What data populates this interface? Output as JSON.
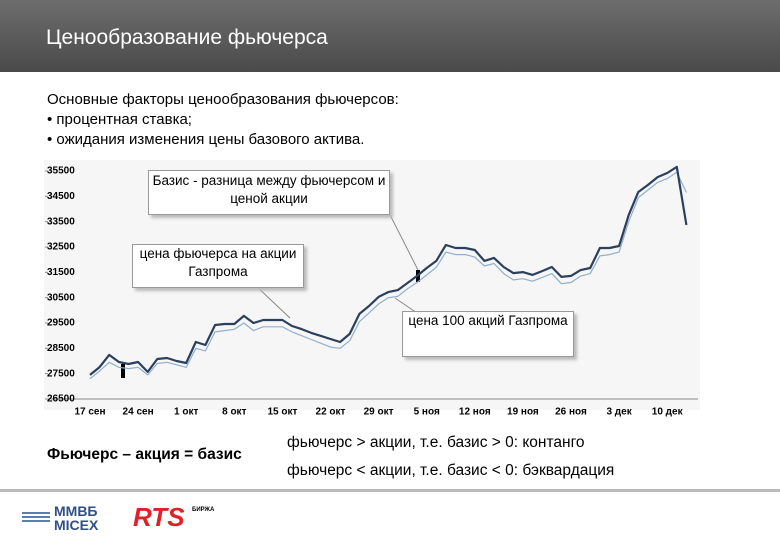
{
  "header": {
    "title": "Ценообразование фьючерса"
  },
  "intro": {
    "heading": "Основные факторы ценообразования фьючерсов:",
    "bullets": [
      "• процентная ставка;",
      "• ожидания изменения цены базового актива."
    ]
  },
  "chart_data": {
    "type": "line",
    "categories": [
      "17 сен",
      null,
      null,
      null,
      null,
      "24 сен",
      null,
      null,
      null,
      null,
      "1 окт",
      null,
      null,
      null,
      null,
      "8 окт",
      null,
      null,
      null,
      null,
      "15 окт",
      null,
      null,
      null,
      null,
      "22 окт",
      null,
      null,
      null,
      null,
      "29 окт",
      null,
      null,
      null,
      null,
      "5 ноя",
      null,
      null,
      null,
      null,
      "12 ноя",
      null,
      null,
      null,
      null,
      "19 ноя",
      null,
      null,
      null,
      null,
      "26 ноя",
      null,
      null,
      null,
      null,
      "3 дек",
      null,
      null,
      null,
      null,
      "10 дек",
      null,
      null
    ],
    "series": [
      {
        "color": "#2b3f5e",
        "values": [
          27450,
          27760,
          28240,
          27960,
          27880,
          27960,
          27570,
          28080,
          28120,
          28000,
          27920,
          28750,
          28630,
          29420,
          29460,
          29460,
          29780,
          29500,
          29620,
          29620,
          29620,
          29380,
          29260,
          29110,
          28990,
          28870,
          28750,
          29070,
          29860,
          30170,
          30530,
          30720,
          30800,
          31080,
          31360,
          31670,
          31950,
          32580,
          32460,
          32460,
          32380,
          31950,
          32070,
          31710,
          31470,
          31510,
          31400,
          31550,
          31710,
          31320,
          31360,
          31590,
          31670,
          32460,
          32460,
          32540,
          33760,
          34670,
          34950,
          35260,
          35420,
          35660,
          33370
        ]
      },
      {
        "color": "#8fb0cc",
        "values": [
          27300,
          27600,
          27950,
          27750,
          27700,
          27750,
          27450,
          27900,
          27950,
          27850,
          27750,
          28500,
          28400,
          29150,
          29200,
          29250,
          29500,
          29200,
          29350,
          29350,
          29350,
          29150,
          29000,
          28850,
          28700,
          28550,
          28500,
          28800,
          29550,
          29900,
          30250,
          30500,
          30550,
          30850,
          31100,
          31400,
          31700,
          32300,
          32200,
          32200,
          32100,
          31750,
          31850,
          31450,
          31200,
          31250,
          31150,
          31300,
          31450,
          31050,
          31100,
          31350,
          31450,
          32150,
          32200,
          32300,
          33500,
          34450,
          34750,
          35050,
          35200,
          35450,
          34650
        ]
      }
    ],
    "ylim": [
      26500,
      35500
    ],
    "yticks": [
      26500,
      27500,
      28500,
      29500,
      30500,
      31500,
      32500,
      33500,
      34500,
      35500
    ],
    "annotations": [
      "Базис - разница между фьючерсом и ценой акции",
      "цена фьючерса на акции Газпрома",
      "цена 100 акций Газпрома"
    ]
  },
  "footer": {
    "formula": "Фьючерс – акция = базис",
    "contango": "фьючерс > акции, т.е. базис > 0: контанго",
    "backwardation": "фьючерс < акции, т.е. базис < 0: бэквардация",
    "logos": [
      "ММВБ",
      "MICEX",
      "RTS",
      "БИРЖА"
    ]
  }
}
